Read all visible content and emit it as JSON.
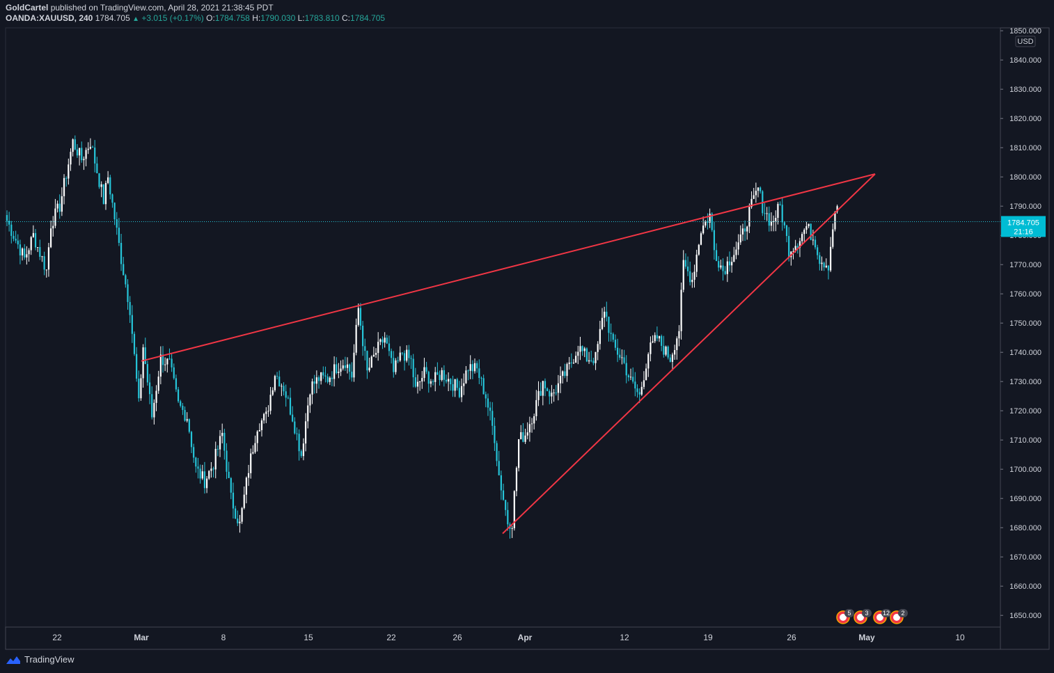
{
  "header": {
    "publisher": "GoldCartel",
    "published_text": "published on TradingView.com, April 28, 2021 21:38:45 PDT",
    "symbol": "OANDA:XAUUSD, 240",
    "last": "1784.705",
    "change": "+3.015 (+0.17%)",
    "o_label": "O:",
    "o_value": "1784.758",
    "h_label": "H:",
    "h_value": "1790.030",
    "l_label": "L:",
    "l_value": "1783.810",
    "c_label": "C:",
    "c_value": "1784.705"
  },
  "footer": {
    "brand": "TradingView"
  },
  "colors": {
    "background": "#131722",
    "candle_up": "#ffffff",
    "candle_down": "#26c6da",
    "trendline": "#f23645",
    "price_label_bg": "#00bcd4"
  },
  "chart_data": {
    "type": "candlestick",
    "currency_badge": "USD",
    "y_ticks": [
      "1850.000",
      "1840.000",
      "1830.000",
      "1820.000",
      "1810.000",
      "1800.000",
      "1790.000",
      "1780.000",
      "1770.000",
      "1760.000",
      "1750.000",
      "1740.000",
      "1730.000",
      "1720.000",
      "1710.000",
      "1700.000",
      "1690.000",
      "1680.000",
      "1670.000",
      "1660.000",
      "1650.000"
    ],
    "y_tick_values": [
      1850,
      1840,
      1830,
      1820,
      1810,
      1800,
      1790,
      1780,
      1770,
      1760,
      1750,
      1740,
      1730,
      1720,
      1710,
      1700,
      1690,
      1680,
      1670,
      1660,
      1650
    ],
    "ylim": [
      1646,
      1851
    ],
    "x_ticks": [
      "22",
      "Mar",
      "8",
      "15",
      "22",
      "26",
      "Apr",
      "12",
      "19",
      "26",
      "May",
      "10"
    ],
    "x_tick_bold": [
      false,
      true,
      false,
      false,
      false,
      false,
      true,
      false,
      false,
      false,
      true,
      false
    ],
    "current_price": "1784.705",
    "current_price_value": 1784.705,
    "countdown": "21:16",
    "event_badges": [
      "5",
      "3",
      "12",
      "2"
    ],
    "trendlines": [
      {
        "name": "upper",
        "points": [
          {
            "bar": 0,
            "y": 1737
          },
          {
            "bar": 320,
            "y": 1801
          }
        ]
      },
      {
        "name": "lower",
        "points": [
          {
            "bar": 155,
            "y": 1678
          },
          {
            "bar": 320,
            "y": 1801
          }
        ]
      }
    ],
    "waypoints": [
      [
        0,
        1785
      ],
      [
        8,
        1772
      ],
      [
        12,
        1780
      ],
      [
        18,
        1768
      ],
      [
        20,
        1784
      ],
      [
        24,
        1790
      ],
      [
        30,
        1812
      ],
      [
        34,
        1806
      ],
      [
        38,
        1812
      ],
      [
        44,
        1792
      ],
      [
        46,
        1800
      ],
      [
        52,
        1772
      ],
      [
        56,
        1755
      ],
      [
        60,
        1722
      ],
      [
        62,
        1742
      ],
      [
        66,
        1718
      ],
      [
        70,
        1738
      ],
      [
        74,
        1736
      ],
      [
        78,
        1722
      ],
      [
        82,
        1718
      ],
      [
        86,
        1700
      ],
      [
        90,
        1696
      ],
      [
        94,
        1702
      ],
      [
        98,
        1712
      ],
      [
        102,
        1690
      ],
      [
        106,
        1681
      ],
      [
        110,
        1700
      ],
      [
        114,
        1715
      ],
      [
        118,
        1718
      ],
      [
        122,
        1733
      ],
      [
        126,
        1728
      ],
      [
        130,
        1718
      ],
      [
        134,
        1705
      ],
      [
        138,
        1728
      ],
      [
        142,
        1731
      ],
      [
        146,
        1731
      ],
      [
        150,
        1735
      ],
      [
        154,
        1737
      ],
      [
        157,
        1732
      ],
      [
        160,
        1755
      ],
      [
        164,
        1733
      ],
      [
        168,
        1740
      ],
      [
        172,
        1745
      ],
      [
        176,
        1733
      ],
      [
        180,
        1740
      ],
      [
        184,
        1737
      ],
      [
        186,
        1727
      ],
      [
        190,
        1733
      ],
      [
        194,
        1730
      ],
      [
        198,
        1733
      ],
      [
        202,
        1730
      ],
      [
        206,
        1727
      ],
      [
        210,
        1735
      ],
      [
        214,
        1734
      ],
      [
        218,
        1725
      ],
      [
        222,
        1711
      ],
      [
        224,
        1698
      ],
      [
        226,
        1690
      ],
      [
        228,
        1682
      ],
      [
        230,
        1682
      ],
      [
        233,
        1710
      ],
      [
        236,
        1712
      ],
      [
        240,
        1720
      ],
      [
        244,
        1730
      ],
      [
        248,
        1725
      ],
      [
        252,
        1730
      ],
      [
        256,
        1735
      ],
      [
        260,
        1742
      ],
      [
        264,
        1738
      ],
      [
        268,
        1738
      ],
      [
        272,
        1755
      ],
      [
        276,
        1742
      ],
      [
        280,
        1738
      ],
      [
        284,
        1730
      ],
      [
        288,
        1725
      ],
      [
        292,
        1740
      ],
      [
        296,
        1745
      ],
      [
        300,
        1740
      ],
      [
        302,
        1738
      ],
      [
        306,
        1748
      ],
      [
        308,
        1770
      ],
      [
        312,
        1765
      ],
      [
        316,
        1782
      ],
      [
        320,
        1787
      ],
      [
        322,
        1775
      ],
      [
        326,
        1768
      ],
      [
        330,
        1773
      ],
      [
        334,
        1778
      ],
      [
        338,
        1788
      ],
      [
        342,
        1796
      ],
      [
        344,
        1790
      ],
      [
        348,
        1784
      ],
      [
        352,
        1790
      ],
      [
        356,
        1775
      ],
      [
        360,
        1778
      ],
      [
        364,
        1783
      ],
      [
        368,
        1778
      ],
      [
        370,
        1772
      ],
      [
        374,
        1770
      ],
      [
        376,
        1783
      ],
      [
        378,
        1790
      ]
    ]
  }
}
